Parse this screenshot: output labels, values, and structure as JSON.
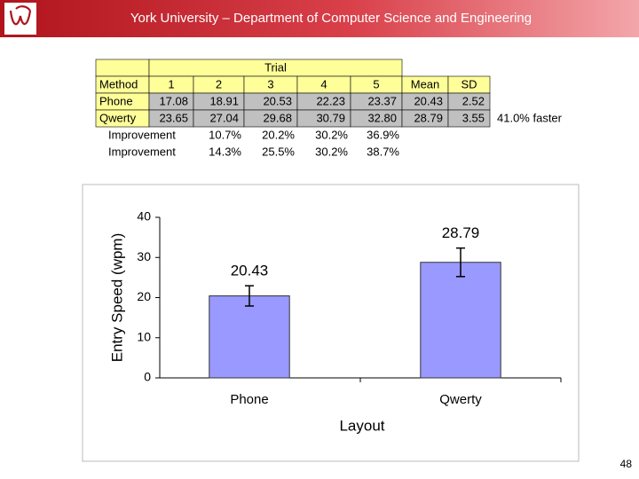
{
  "header": {
    "title": "York University – Department of Computer Science and Engineering"
  },
  "table": {
    "group_header": "Trial",
    "columns": [
      "Method",
      "1",
      "2",
      "3",
      "4",
      "5",
      "Mean",
      "SD"
    ],
    "rows": [
      [
        "Phone",
        "17.08",
        "18.91",
        "20.53",
        "22.23",
        "23.37",
        "20.43",
        "2.52"
      ],
      [
        "Qwerty",
        "23.65",
        "27.04",
        "29.68",
        "30.79",
        "32.80",
        "28.79",
        "3.55"
      ]
    ],
    "note": "41.0% faster",
    "improvements": [
      [
        "Improvement",
        "10.7%",
        "20.2%",
        "30.2%",
        "36.9%"
      ],
      [
        "Improvement",
        "14.3%",
        "25.5%",
        "30.2%",
        "38.7%"
      ]
    ]
  },
  "chart_data": {
    "type": "bar",
    "categories": [
      "Phone",
      "Qwerty"
    ],
    "values": [
      20.43,
      28.79
    ],
    "errors": [
      2.52,
      3.55
    ],
    "color": "#9999ff",
    "ylim": [
      0,
      40
    ],
    "yticks": [
      0,
      10,
      20,
      30,
      40
    ],
    "x_label": "Layout",
    "y_label": "Entry Speed (wpm)"
  },
  "page_number": "48"
}
